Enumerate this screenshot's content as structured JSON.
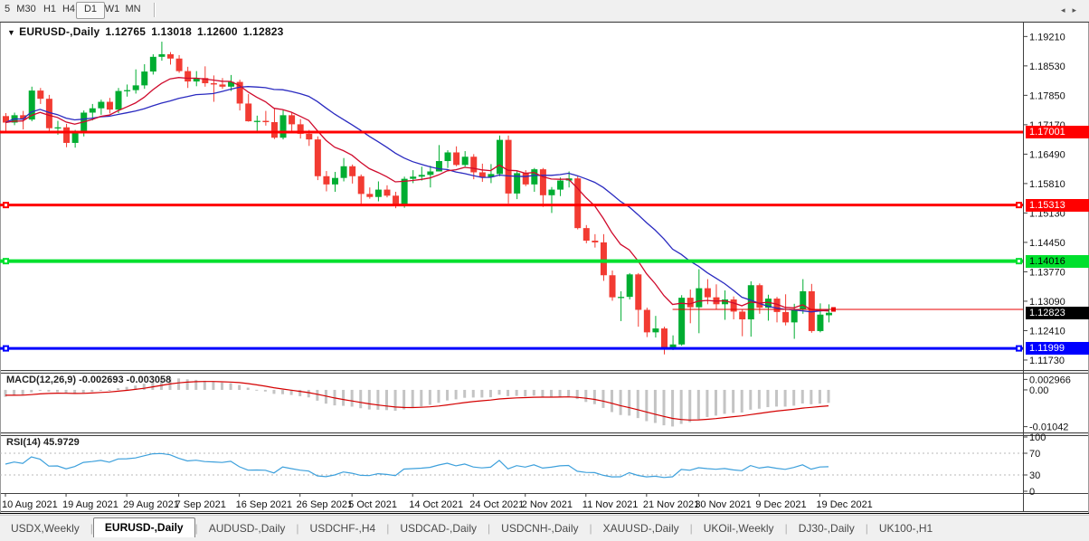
{
  "toolbar": {
    "timeframes": [
      {
        "label": "5",
        "active": false
      },
      {
        "label": "M30",
        "active": false
      },
      {
        "label": "H1",
        "active": false
      },
      {
        "label": "H4",
        "active": false
      },
      {
        "label": "D1",
        "active": true
      },
      {
        "label": "W1",
        "active": false
      },
      {
        "label": "MN",
        "active": false
      }
    ]
  },
  "chart_title": {
    "marker": "▼",
    "symbol": "EURUSD-,Daily",
    "open": "1.12765",
    "high": "1.13018",
    "low": "1.12600",
    "close": "1.12823"
  },
  "indicators": {
    "macd_label": "MACD(12,26,9) -0.002693 -0.003058",
    "rsi_label": "RSI(14) 45.9729"
  },
  "tabs": {
    "scroll_left": "◂",
    "scroll_right": "▸",
    "items": [
      {
        "label": "USDX,Weekly",
        "active": false
      },
      {
        "label": "EURUSD-,Daily",
        "active": true
      },
      {
        "label": "AUDUSD-,Daily",
        "active": false
      },
      {
        "label": "USDCHF-,H4",
        "active": false
      },
      {
        "label": "USDCAD-,Daily",
        "active": false
      },
      {
        "label": "USDCNH-,Daily",
        "active": false
      },
      {
        "label": "XAUUSD-,Daily",
        "active": false
      },
      {
        "label": "UKOil-,Weekly",
        "active": false
      },
      {
        "label": "DJ30-,Daily",
        "active": false
      },
      {
        "label": "UK100-,H1",
        "active": false
      }
    ]
  },
  "chart_data": {
    "type": "candlestick",
    "symbol": "EURUSD-",
    "timeframe": "Daily",
    "candle_up_color": "#00ad31",
    "candle_down_color": "#f23b32",
    "price_range": {
      "max": 1.1951,
      "min": 1.1152
    },
    "y_ticks": [
      "1.19210",
      "1.18530",
      "1.17850",
      "1.17170",
      "1.16490",
      "1.15810",
      "1.15130",
      "1.14450",
      "1.13770",
      "1.13090",
      "1.12410",
      "1.11730"
    ],
    "x_ticks": [
      {
        "label": "10 Aug 2021",
        "bar": 0
      },
      {
        "label": "19 Aug 2021",
        "bar": 7
      },
      {
        "label": "29 Aug 2021",
        "bar": 14
      },
      {
        "label": "7 Sep 2021",
        "bar": 20
      },
      {
        "label": "16 Sep 2021",
        "bar": 27
      },
      {
        "label": "26 Sep 2021",
        "bar": 34
      },
      {
        "label": "5 Oct 2021",
        "bar": 40
      },
      {
        "label": "14 Oct 2021",
        "bar": 47
      },
      {
        "label": "24 Oct 2021",
        "bar": 54
      },
      {
        "label": "2 Nov 2021",
        "bar": 60
      },
      {
        "label": "11 Nov 2021",
        "bar": 67
      },
      {
        "label": "21 Nov 2021",
        "bar": 74
      },
      {
        "label": "30 Nov 2021",
        "bar": 80
      },
      {
        "label": "9 Dec 2021",
        "bar": 87
      },
      {
        "label": "19 Dec 2021",
        "bar": 94
      }
    ],
    "candles": [
      [
        1.1737,
        1.1744,
        1.1702,
        1.1722
      ],
      [
        1.1722,
        1.1745,
        1.1716,
        1.1739
      ],
      [
        1.1739,
        1.1749,
        1.1706,
        1.1729
      ],
      [
        1.1729,
        1.1805,
        1.1725,
        1.1796
      ],
      [
        1.1796,
        1.1802,
        1.1765,
        1.1777
      ],
      [
        1.1777,
        1.1786,
        1.17,
        1.1709
      ],
      [
        1.1709,
        1.1726,
        1.1694,
        1.1711
      ],
      [
        1.1711,
        1.1719,
        1.1665,
        1.1675
      ],
      [
        1.1675,
        1.1705,
        1.1664,
        1.1697
      ],
      [
        1.1697,
        1.175,
        1.169,
        1.1745
      ],
      [
        1.1745,
        1.1765,
        1.1727,
        1.1755
      ],
      [
        1.1755,
        1.1775,
        1.174,
        1.177
      ],
      [
        1.177,
        1.1779,
        1.1743,
        1.1752
      ],
      [
        1.1752,
        1.1802,
        1.1744,
        1.1795
      ],
      [
        1.1795,
        1.181,
        1.1782,
        1.1797
      ],
      [
        1.1797,
        1.1845,
        1.1789,
        1.1808
      ],
      [
        1.1808,
        1.1857,
        1.18,
        1.184
      ],
      [
        1.184,
        1.188,
        1.1833,
        1.1874
      ],
      [
        1.1874,
        1.1909,
        1.1865,
        1.188
      ],
      [
        1.188,
        1.1885,
        1.1856,
        1.187
      ],
      [
        1.187,
        1.1878,
        1.1837,
        1.1841
      ],
      [
        1.1841,
        1.1851,
        1.1802,
        1.1817
      ],
      [
        1.1817,
        1.1841,
        1.1806,
        1.1825
      ],
      [
        1.1825,
        1.1852,
        1.1805,
        1.1813
      ],
      [
        1.1813,
        1.1831,
        1.177,
        1.181
      ],
      [
        1.181,
        1.1825,
        1.18,
        1.1805
      ],
      [
        1.1805,
        1.1832,
        1.1795,
        1.1816
      ],
      [
        1.1816,
        1.1821,
        1.175,
        1.1766
      ],
      [
        1.1766,
        1.1788,
        1.1724,
        1.1725
      ],
      [
        1.1725,
        1.1738,
        1.17,
        1.1726
      ],
      [
        1.1726,
        1.1749,
        1.1715,
        1.1723
      ],
      [
        1.1723,
        1.1756,
        1.1684,
        1.1687
      ],
      [
        1.1687,
        1.1751,
        1.1683,
        1.1739
      ],
      [
        1.1739,
        1.1745,
        1.1701,
        1.1718
      ],
      [
        1.1718,
        1.173,
        1.1685,
        1.1696
      ],
      [
        1.1696,
        1.1705,
        1.1668,
        1.1683
      ],
      [
        1.1683,
        1.169,
        1.1589,
        1.1598
      ],
      [
        1.1598,
        1.161,
        1.1563,
        1.1579
      ],
      [
        1.1579,
        1.1608,
        1.1562,
        1.1594
      ],
      [
        1.1594,
        1.164,
        1.1586,
        1.1621
      ],
      [
        1.1621,
        1.1625,
        1.1581,
        1.1598
      ],
      [
        1.1598,
        1.1602,
        1.1529,
        1.1557
      ],
      [
        1.1557,
        1.1572,
        1.1546,
        1.155
      ],
      [
        1.155,
        1.1586,
        1.154,
        1.1567
      ],
      [
        1.1567,
        1.1577,
        1.1549,
        1.1553
      ],
      [
        1.1553,
        1.1562,
        1.1524,
        1.1531
      ],
      [
        1.1531,
        1.1597,
        1.1525,
        1.1592
      ],
      [
        1.1592,
        1.1612,
        1.1582,
        1.1597
      ],
      [
        1.1597,
        1.162,
        1.1588,
        1.1601
      ],
      [
        1.1601,
        1.1622,
        1.1572,
        1.1609
      ],
      [
        1.1609,
        1.167,
        1.1609,
        1.1633
      ],
      [
        1.1633,
        1.1658,
        1.1617,
        1.1653
      ],
      [
        1.1653,
        1.1667,
        1.1621,
        1.1624
      ],
      [
        1.1624,
        1.1656,
        1.162,
        1.1643
      ],
      [
        1.1643,
        1.1649,
        1.1591,
        1.1607
      ],
      [
        1.1607,
        1.1627,
        1.1585,
        1.1596
      ],
      [
        1.1596,
        1.1626,
        1.1582,
        1.1603
      ],
      [
        1.1603,
        1.1692,
        1.1598,
        1.1682
      ],
      [
        1.1682,
        1.1692,
        1.1535,
        1.1558
      ],
      [
        1.1558,
        1.1609,
        1.1545,
        1.1605
      ],
      [
        1.1605,
        1.1612,
        1.1575,
        1.1579
      ],
      [
        1.1579,
        1.1617,
        1.1562,
        1.1614
      ],
      [
        1.1614,
        1.1617,
        1.1527,
        1.1554
      ],
      [
        1.1554,
        1.1573,
        1.1513,
        1.1567
      ],
      [
        1.1567,
        1.1595,
        1.1552,
        1.1588
      ],
      [
        1.1588,
        1.1609,
        1.1572,
        1.1593
      ],
      [
        1.1593,
        1.1598,
        1.1475,
        1.1478
      ],
      [
        1.1478,
        1.1485,
        1.1443,
        1.1449
      ],
      [
        1.1449,
        1.1464,
        1.1433,
        1.1445
      ],
      [
        1.1445,
        1.1464,
        1.1356,
        1.1369
      ],
      [
        1.1369,
        1.138,
        1.131,
        1.1318
      ],
      [
        1.1318,
        1.1332,
        1.1263,
        1.1319
      ],
      [
        1.1319,
        1.1374,
        1.1313,
        1.1371
      ],
      [
        1.1371,
        1.1374,
        1.125,
        1.1289
      ],
      [
        1.1289,
        1.1294,
        1.1226,
        1.1237
      ],
      [
        1.1237,
        1.1275,
        1.1225,
        1.1246
      ],
      [
        1.1246,
        1.125,
        1.1186,
        1.1199
      ],
      [
        1.1199,
        1.123,
        1.1196,
        1.1209
      ],
      [
        1.1209,
        1.1323,
        1.1206,
        1.1317
      ],
      [
        1.1317,
        1.1336,
        1.1258,
        1.1295
      ],
      [
        1.1295,
        1.1383,
        1.1235,
        1.1339
      ],
      [
        1.1339,
        1.136,
        1.1302,
        1.1318
      ],
      [
        1.1318,
        1.1348,
        1.129,
        1.1302
      ],
      [
        1.1302,
        1.1334,
        1.1266,
        1.1313
      ],
      [
        1.1313,
        1.132,
        1.1267,
        1.1285
      ],
      [
        1.1285,
        1.129,
        1.1228,
        1.1267
      ],
      [
        1.1267,
        1.1355,
        1.1227,
        1.1346
      ],
      [
        1.1346,
        1.135,
        1.128,
        1.1294
      ],
      [
        1.1294,
        1.1324,
        1.1264,
        1.1315
      ],
      [
        1.1315,
        1.1319,
        1.126,
        1.1284
      ],
      [
        1.1284,
        1.1325,
        1.1253,
        1.126
      ],
      [
        1.126,
        1.1303,
        1.1222,
        1.1289
      ],
      [
        1.1289,
        1.136,
        1.128,
        1.1332
      ],
      [
        1.1332,
        1.1349,
        1.1236,
        1.124
      ],
      [
        1.124,
        1.1304,
        1.1237,
        1.1278
      ],
      [
        1.12765,
        1.13018,
        1.126,
        1.12823
      ]
    ],
    "moving_averages": [
      {
        "name": "fast",
        "type": "ema",
        "period": 10,
        "color": "#cf0a2c"
      },
      {
        "name": "slow",
        "type": "sma",
        "period": 20,
        "color": "#2a2ac0"
      }
    ],
    "h_lines": [
      {
        "label": "1.17001",
        "price": 1.17001,
        "color": "#ff0000",
        "text_color": "#ffffff",
        "thickness": 3,
        "handles": false
      },
      {
        "label": "1.15313",
        "price": 1.15313,
        "color": "#ff0000",
        "text_color": "#ffffff",
        "thickness": 3,
        "handles": true
      },
      {
        "label": "1.14016",
        "price": 1.14016,
        "color": "#00e02e",
        "text_color": "#000000",
        "thickness": 4,
        "handles": true
      },
      {
        "label": "1.11999",
        "price": 1.11999,
        "color": "#0000ff",
        "text_color": "#ffffff",
        "thickness": 3,
        "handles": true
      }
    ],
    "last_price": {
      "label": "1.12823",
      "price": 1.12823,
      "bg": "#000000",
      "text_color": "#ffffff"
    },
    "bid_segment": {
      "price": 1.129,
      "from_bar": 77,
      "color": "#e80000"
    },
    "macd": {
      "params": "12,26,9",
      "value": "-0.002693",
      "signal_value": "-0.003058",
      "range": {
        "max": 0.0046,
        "min": -0.0118
      },
      "hist_color": "#c4c4c4",
      "signal_color": "#d40000",
      "ticks": [
        {
          "label": "0.002966",
          "value": 0.002966
        },
        {
          "label": "0.00",
          "value": 0.0
        },
        {
          "label": "-0.01042",
          "value": -0.01042
        }
      ]
    },
    "rsi": {
      "period": 14,
      "value": "45.9729",
      "color": "#3da0dc",
      "levels": [
        70,
        30
      ],
      "ticks": [
        {
          "label": "100",
          "value": 100
        },
        {
          "label": "70",
          "value": 70
        },
        {
          "label": "30",
          "value": 30
        },
        {
          "label": "0",
          "value": 0
        }
      ]
    }
  }
}
